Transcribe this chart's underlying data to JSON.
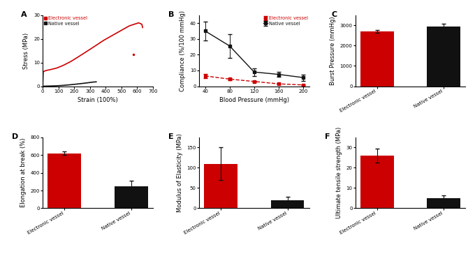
{
  "panel_A": {
    "electronic_vessel_x": [
      0,
      3,
      8,
      15,
      25,
      40,
      60,
      90,
      130,
      180,
      240,
      310,
      390,
      470,
      550,
      610,
      630,
      635
    ],
    "electronic_vessel_y": [
      0,
      6.0,
      6.3,
      6.5,
      6.7,
      6.9,
      7.2,
      7.7,
      8.8,
      10.5,
      13.0,
      16.0,
      19.5,
      22.5,
      25.5,
      26.8,
      26.2,
      24.8
    ],
    "native_vessel_x": [
      0,
      30,
      80,
      130,
      180,
      230,
      280,
      320,
      340
    ],
    "native_vessel_y": [
      0,
      0.05,
      0.15,
      0.35,
      0.65,
      1.0,
      1.4,
      1.75,
      1.85
    ],
    "scatter_x": 575,
    "scatter_y": 13.5,
    "xlim": [
      0,
      700
    ],
    "ylim": [
      0,
      30
    ],
    "xticks": [
      0,
      100,
      200,
      300,
      400,
      500,
      600,
      700
    ],
    "yticks": [
      0,
      10,
      20,
      30
    ],
    "xlabel": "Strain (100%)",
    "ylabel": "Stress (MPa)",
    "label": "A"
  },
  "panel_B": {
    "x": [
      40,
      80,
      120,
      160,
      200
    ],
    "electronic_y": [
      6.5,
      4.5,
      3.0,
      1.5,
      0.8
    ],
    "electronic_err": [
      1.2,
      0.8,
      0.5,
      0.4,
      0.3
    ],
    "native_y": [
      35.0,
      25.5,
      9.0,
      7.5,
      5.5
    ],
    "native_err": [
      6.0,
      7.5,
      2.5,
      1.5,
      2.0
    ],
    "xlim": [
      30,
      210
    ],
    "ylim": [
      0,
      45
    ],
    "xticks": [
      40,
      80,
      120,
      160,
      200
    ],
    "yticks": [
      0,
      10,
      20,
      30,
      40
    ],
    "xlabel": "Blood Pressure (mmHg)",
    "ylabel": "Compliance (%/100 mmHg)",
    "label": "B"
  },
  "panel_C": {
    "categories": [
      "Electronic vessel",
      "Native vessel"
    ],
    "values": [
      2700,
      2950
    ],
    "errors": [
      60,
      120
    ],
    "colors": [
      "#cc0000",
      "#111111"
    ],
    "ylim": [
      0,
      3500
    ],
    "yticks": [
      0,
      1000,
      2000,
      3000
    ],
    "ylabel": "Burst Pressure (mmHg)",
    "label": "C"
  },
  "panel_D": {
    "categories": [
      "Electronic vessel",
      "Native vessel"
    ],
    "values": [
      620,
      250
    ],
    "errors": [
      20,
      60
    ],
    "colors": [
      "#cc0000",
      "#111111"
    ],
    "ylim": [
      0,
      800
    ],
    "yticks": [
      0,
      200,
      400,
      600,
      800
    ],
    "ylabel": "Elongation at break (%)",
    "label": "D"
  },
  "panel_E": {
    "categories": [
      "Electronic vessel",
      "Native vessel"
    ],
    "values": [
      110,
      20
    ],
    "errors": [
      40,
      8
    ],
    "colors": [
      "#cc0000",
      "#111111"
    ],
    "ylim": [
      0,
      175
    ],
    "yticks": [
      0,
      50,
      100,
      150
    ],
    "ylabel": "Modulus of Elasticity (MPa)",
    "label": "E"
  },
  "panel_F": {
    "categories": [
      "Electronic vessel",
      "Native vessel"
    ],
    "values": [
      26,
      5
    ],
    "errors": [
      3.5,
      1.2
    ],
    "colors": [
      "#cc0000",
      "#111111"
    ],
    "ylim": [
      0,
      35
    ],
    "yticks": [
      0,
      10,
      20,
      30
    ],
    "ylabel": "Ultimate tensile strength (MPa)",
    "label": "F"
  },
  "colors": {
    "electronic_red": "#cc0000",
    "native_black": "#111111"
  },
  "background": "#ffffff"
}
